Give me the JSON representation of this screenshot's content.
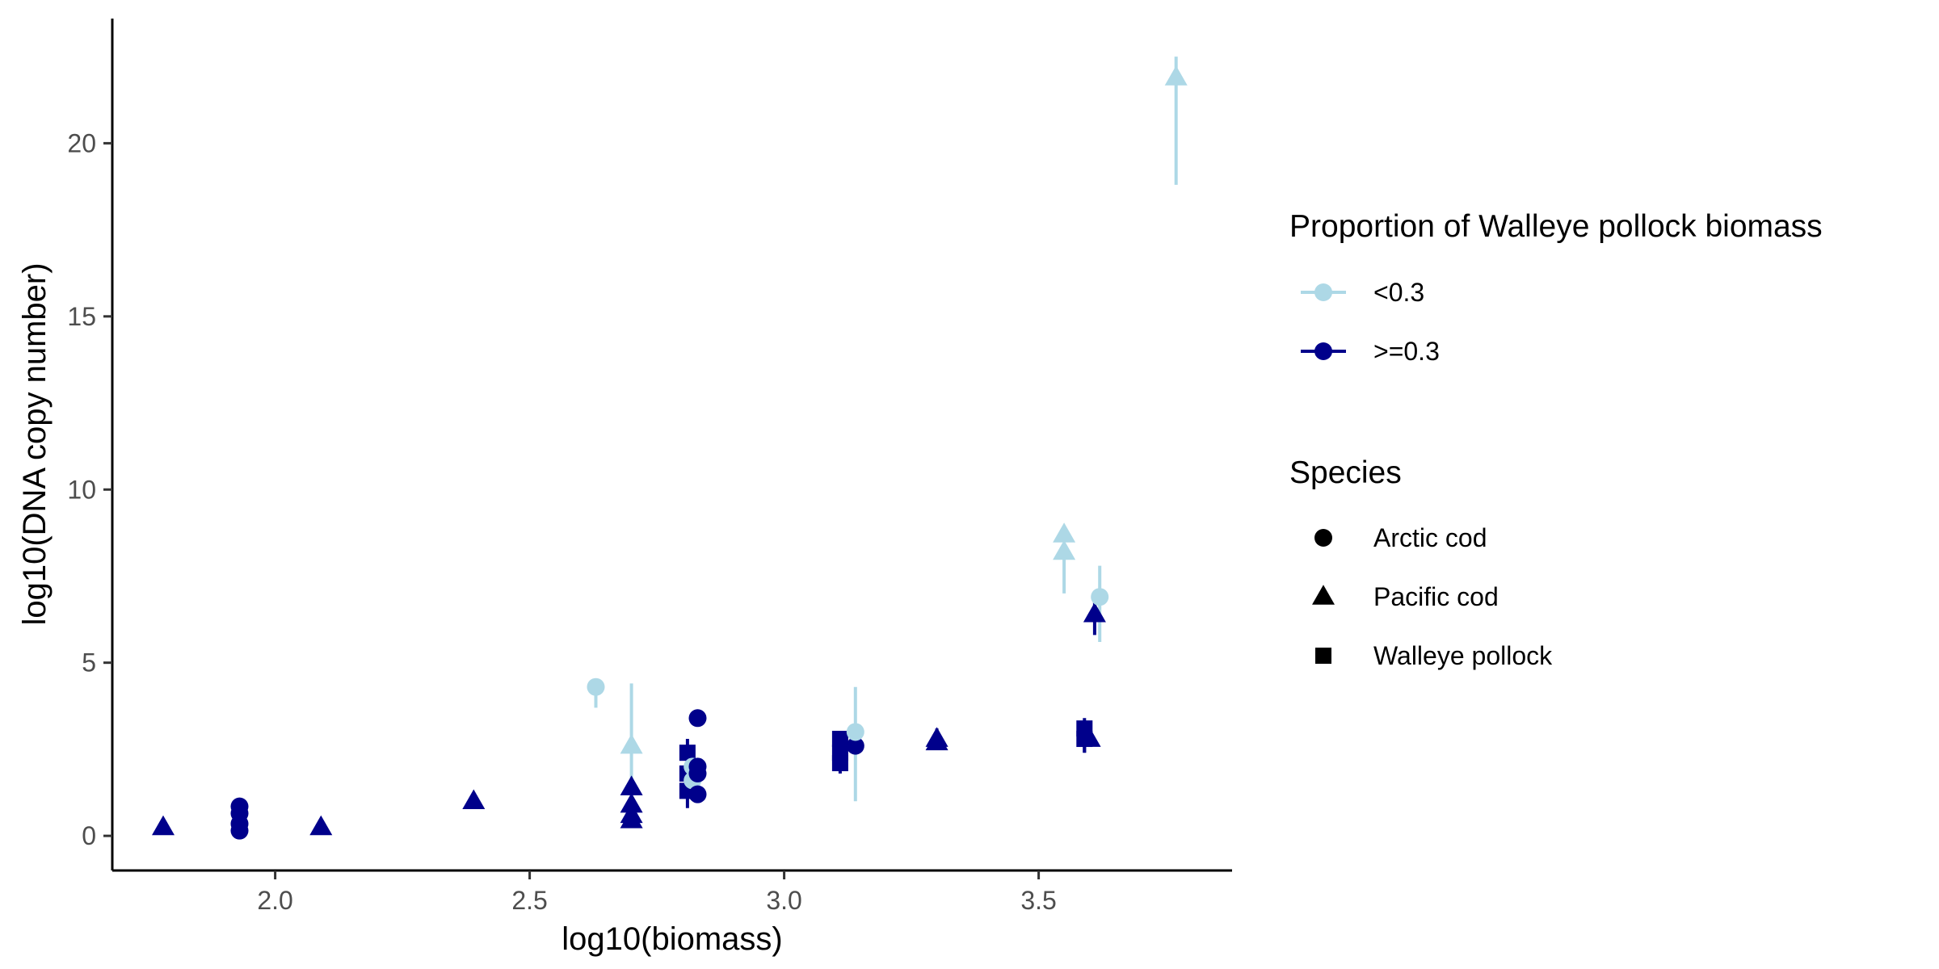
{
  "chart_data": {
    "type": "scatter",
    "title": "",
    "xlabel": "log10(biomass)",
    "ylabel": "log10(DNA copy number)",
    "xlim": [
      1.68,
      3.88
    ],
    "ylim": [
      -1.0,
      23.6
    ],
    "x_ticks": [
      2.0,
      2.5,
      3.0,
      3.5
    ],
    "x_tick_labels": [
      "2.0",
      "2.5",
      "3.0",
      "3.5"
    ],
    "y_ticks": [
      0,
      5,
      10,
      15,
      20
    ],
    "y_tick_labels": [
      "0",
      "5",
      "10",
      "15",
      "20"
    ],
    "grid": false,
    "legend_position": "right",
    "color_legend": {
      "title": "Proportion of Walleye pollock biomass",
      "entries": [
        {
          "label": "<0.3",
          "color": "#add8e6"
        },
        {
          "label": ">=0.3",
          "color": "#00008b"
        }
      ]
    },
    "shape_legend": {
      "title": "Species",
      "entries": [
        {
          "label": "Arctic cod",
          "shape": "circle"
        },
        {
          "label": "Pacific cod",
          "shape": "triangle"
        },
        {
          "label": "Walleye pollock",
          "shape": "square"
        }
      ]
    },
    "points": [
      {
        "x": 1.78,
        "y": 0.25,
        "lo": 0.2,
        "hi": 0.3,
        "species": "Pacific cod",
        "group": ">=0.3"
      },
      {
        "x": 1.93,
        "y": 0.85,
        "lo": 0.8,
        "hi": 0.9,
        "species": "Arctic cod",
        "group": ">=0.3"
      },
      {
        "x": 1.93,
        "y": 0.65,
        "lo": 0.6,
        "hi": 0.7,
        "species": "Arctic cod",
        "group": ">=0.3"
      },
      {
        "x": 1.93,
        "y": 0.35,
        "lo": 0.3,
        "hi": 0.4,
        "species": "Arctic cod",
        "group": ">=0.3"
      },
      {
        "x": 1.93,
        "y": 0.15,
        "lo": 0.1,
        "hi": 0.2,
        "species": "Arctic cod",
        "group": ">=0.3"
      },
      {
        "x": 2.09,
        "y": 0.25,
        "lo": 0.2,
        "hi": 0.3,
        "species": "Pacific cod",
        "group": ">=0.3"
      },
      {
        "x": 2.39,
        "y": 1.0,
        "lo": 0.9,
        "hi": 1.1,
        "species": "Pacific cod",
        "group": ">=0.3"
      },
      {
        "x": 2.63,
        "y": 4.3,
        "lo": 3.7,
        "hi": 4.4,
        "species": "Arctic cod",
        "group": "<0.3"
      },
      {
        "x": 2.7,
        "y": 2.6,
        "lo": 0.9,
        "hi": 4.4,
        "species": "Pacific cod",
        "group": "<0.3"
      },
      {
        "x": 2.7,
        "y": 1.4,
        "lo": 1.3,
        "hi": 1.5,
        "species": "Pacific cod",
        "group": ">=0.3"
      },
      {
        "x": 2.7,
        "y": 0.9,
        "lo": 0.8,
        "hi": 1.0,
        "species": "Pacific cod",
        "group": ">=0.3"
      },
      {
        "x": 2.7,
        "y": 0.6,
        "lo": 0.5,
        "hi": 0.7,
        "species": "Pacific cod",
        "group": ">=0.3"
      },
      {
        "x": 2.7,
        "y": 0.45,
        "lo": 0.4,
        "hi": 0.5,
        "species": "Pacific cod",
        "group": ">=0.3"
      },
      {
        "x": 2.81,
        "y": 2.4,
        "lo": 1.8,
        "hi": 2.8,
        "species": "Walleye pollock",
        "group": ">=0.3"
      },
      {
        "x": 2.81,
        "y": 1.8,
        "lo": 1.2,
        "hi": 2.3,
        "species": "Walleye pollock",
        "group": ">=0.3"
      },
      {
        "x": 2.81,
        "y": 1.3,
        "lo": 0.8,
        "hi": 1.8,
        "species": "Walleye pollock",
        "group": ">=0.3"
      },
      {
        "x": 2.82,
        "y": 2.0,
        "lo": 1.6,
        "hi": 2.4,
        "species": "Arctic cod",
        "group": "<0.3"
      },
      {
        "x": 2.82,
        "y": 1.6,
        "lo": 1.3,
        "hi": 1.9,
        "species": "Arctic cod",
        "group": "<0.3"
      },
      {
        "x": 2.83,
        "y": 3.4,
        "lo": 3.3,
        "hi": 3.5,
        "species": "Arctic cod",
        "group": ">=0.3"
      },
      {
        "x": 2.83,
        "y": 2.0,
        "lo": 1.9,
        "hi": 2.1,
        "species": "Arctic cod",
        "group": ">=0.3"
      },
      {
        "x": 2.83,
        "y": 1.8,
        "lo": 1.7,
        "hi": 1.9,
        "species": "Arctic cod",
        "group": ">=0.3"
      },
      {
        "x": 2.83,
        "y": 1.2,
        "lo": 1.1,
        "hi": 1.3,
        "species": "Arctic cod",
        "group": ">=0.3"
      },
      {
        "x": 3.11,
        "y": 2.8,
        "lo": 2.3,
        "hi": 3.0,
        "species": "Walleye pollock",
        "group": ">=0.3"
      },
      {
        "x": 3.11,
        "y": 2.4,
        "lo": 2.0,
        "hi": 2.8,
        "species": "Walleye pollock",
        "group": ">=0.3"
      },
      {
        "x": 3.11,
        "y": 2.1,
        "lo": 1.8,
        "hi": 2.5,
        "species": "Walleye pollock",
        "group": ">=0.3"
      },
      {
        "x": 3.14,
        "y": 2.6,
        "lo": 2.5,
        "hi": 2.7,
        "species": "Arctic cod",
        "group": ">=0.3"
      },
      {
        "x": 3.14,
        "y": 3.0,
        "lo": 1.0,
        "hi": 4.3,
        "species": "Arctic cod",
        "group": "<0.3"
      },
      {
        "x": 3.3,
        "y": 2.8,
        "lo": 2.6,
        "hi": 3.1,
        "species": "Pacific cod",
        "group": ">=0.3"
      },
      {
        "x": 3.3,
        "y": 2.7,
        "lo": 2.6,
        "hi": 2.8,
        "species": "Pacific cod",
        "group": ">=0.3"
      },
      {
        "x": 3.55,
        "y": 8.7,
        "lo": 8.6,
        "hi": 8.8,
        "species": "Pacific cod",
        "group": "<0.3"
      },
      {
        "x": 3.55,
        "y": 8.2,
        "lo": 7.0,
        "hi": 8.4,
        "species": "Pacific cod",
        "group": "<0.3"
      },
      {
        "x": 3.59,
        "y": 3.1,
        "lo": 2.4,
        "hi": 3.4,
        "species": "Walleye pollock",
        "group": ">=0.3"
      },
      {
        "x": 3.59,
        "y": 2.8,
        "lo": 2.4,
        "hi": 3.2,
        "species": "Walleye pollock",
        "group": ">=0.3"
      },
      {
        "x": 3.6,
        "y": 2.8,
        "lo": 2.7,
        "hi": 2.9,
        "species": "Pacific cod",
        "group": ">=0.3"
      },
      {
        "x": 3.61,
        "y": 6.4,
        "lo": 5.8,
        "hi": 6.9,
        "species": "Pacific cod",
        "group": ">=0.3"
      },
      {
        "x": 3.62,
        "y": 6.9,
        "lo": 5.6,
        "hi": 7.8,
        "species": "Arctic cod",
        "group": "<0.3"
      },
      {
        "x": 3.77,
        "y": 21.9,
        "lo": 18.8,
        "hi": 22.5,
        "species": "Pacific cod",
        "group": "<0.3"
      }
    ]
  }
}
